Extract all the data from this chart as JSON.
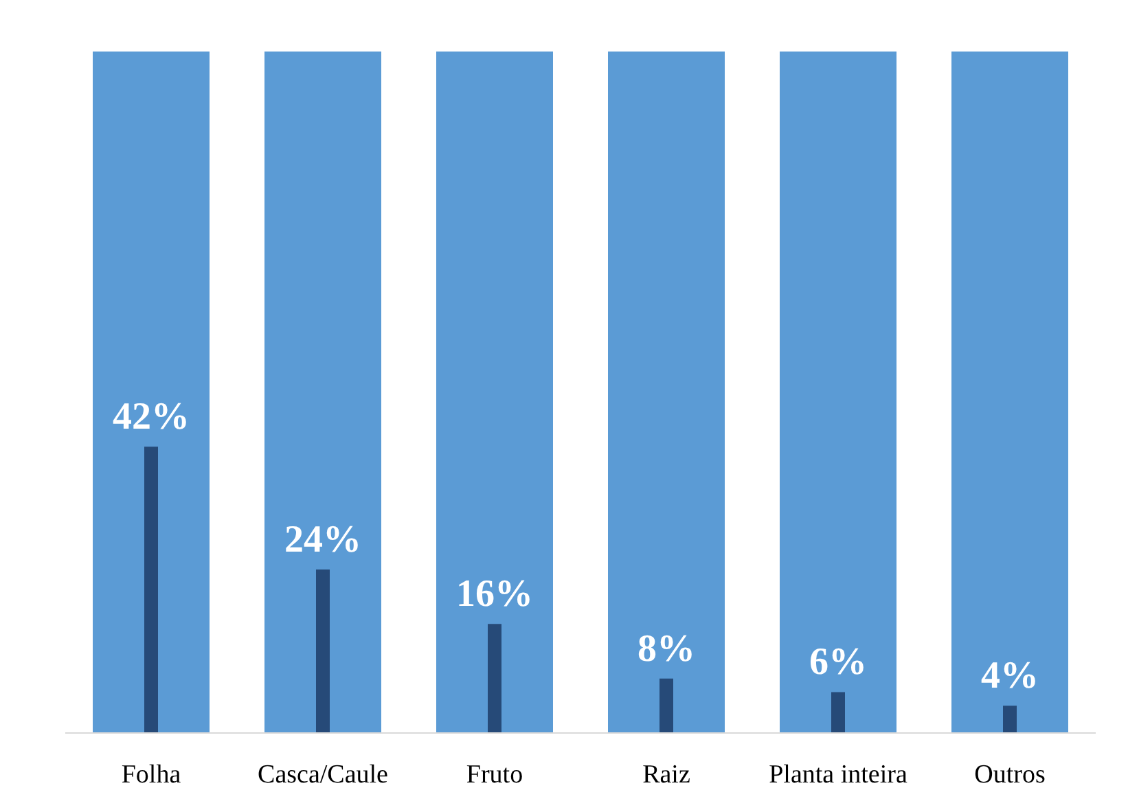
{
  "chart_data": {
    "type": "bar",
    "categories": [
      "Folha",
      "Casca/Caule",
      "Fruto",
      "Raiz",
      "Planta inteira",
      "Outros"
    ],
    "series": [
      {
        "color": "#5b9bd5",
        "values": [
          100,
          100,
          100,
          100,
          100,
          100
        ]
      },
      {
        "color": "#264a78",
        "values": [
          42,
          24,
          16,
          8,
          6,
          4
        ],
        "value_labels": [
          "42%",
          "24%",
          "16%",
          "8%",
          "6%",
          "4%"
        ]
      }
    ],
    "ylim": [
      0,
      100
    ],
    "tick_labels": "x",
    "grid": false
  }
}
